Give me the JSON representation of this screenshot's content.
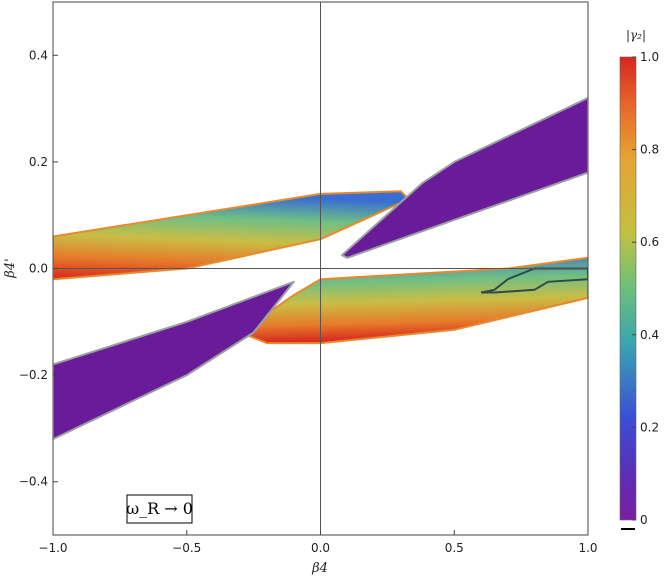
{
  "chart_data": {
    "type": "heatmap",
    "xlabel": "β4",
    "ylabel": "β4'",
    "xlim": [
      -1.0,
      1.0
    ],
    "ylim": [
      -0.5,
      0.5
    ],
    "x_ticks": [
      "−1.0",
      "−0.5",
      "0.0",
      "0.5",
      "1.0"
    ],
    "x_tick_values": [
      -1.0,
      -0.5,
      0.0,
      0.5,
      1.0
    ],
    "y_ticks": [
      "−0.4",
      "−0.2",
      "0.0",
      "0.2",
      "0.4"
    ],
    "y_tick_values": [
      -0.4,
      -0.2,
      0.0,
      0.2,
      0.4
    ],
    "grid": false,
    "colorbar": {
      "label": "|γ₂|",
      "range": [
        0,
        1
      ],
      "ticks": [
        "0",
        "0.2",
        "0.4",
        "0.6",
        "0.8",
        "1.0"
      ],
      "tick_values": [
        0,
        0.2,
        0.4,
        0.6,
        0.8,
        1.0
      ],
      "colormap": "Rainbow (purple→blue→green→yellow→orange→red)"
    },
    "annotation": "ω_R → 0",
    "regions": [
      {
        "name": "upper-left band",
        "outline": [
          [
            -1.0,
            0.06
          ],
          [
            0.0,
            0.14
          ],
          [
            0.3,
            0.145
          ],
          [
            0.33,
            0.13
          ],
          [
            0.0,
            0.055
          ],
          [
            -0.5,
            0.0
          ],
          [
            -1.0,
            -0.02
          ]
        ],
        "value_low_edge": 1.0,
        "value_high_edge": 0.1
      },
      {
        "name": "upper-right wedge",
        "outline": [
          [
            0.08,
            0.025
          ],
          [
            0.1,
            0.02
          ],
          [
            1.0,
            0.18
          ],
          [
            1.0,
            0.32
          ],
          [
            0.5,
            0.2
          ],
          [
            0.38,
            0.16
          ]
        ],
        "value": 0.05
      },
      {
        "name": "lower-right band",
        "outline": [
          [
            -0.2,
            -0.14
          ],
          [
            0.0,
            -0.14
          ],
          [
            0.5,
            -0.115
          ],
          [
            1.0,
            -0.055
          ],
          [
            1.0,
            0.02
          ],
          [
            0.7,
            0.0
          ],
          [
            0.0,
            -0.02
          ],
          [
            -0.1,
            -0.05
          ],
          [
            -0.3,
            -0.12
          ]
        ],
        "value_low_edge": 1.0,
        "value_high_edge": 0.1
      },
      {
        "name": "lower-left wedge",
        "outline": [
          [
            -1.0,
            -0.32
          ],
          [
            -1.0,
            -0.18
          ],
          [
            -0.5,
            -0.1
          ],
          [
            -0.1,
            -0.025
          ],
          [
            -0.25,
            -0.12
          ],
          [
            -0.5,
            -0.2
          ]
        ],
        "value": 0.05
      }
    ],
    "contour": [
      [
        0.6,
        -0.045
      ],
      [
        0.65,
        -0.04
      ],
      [
        0.7,
        -0.02
      ],
      [
        0.75,
        -0.01
      ],
      [
        0.8,
        0.0
      ],
      [
        1.0,
        0.0
      ],
      [
        1.0,
        -0.02
      ],
      [
        0.85,
        -0.025
      ],
      [
        0.8,
        -0.04
      ],
      [
        0.65,
        -0.045
      ]
    ]
  }
}
